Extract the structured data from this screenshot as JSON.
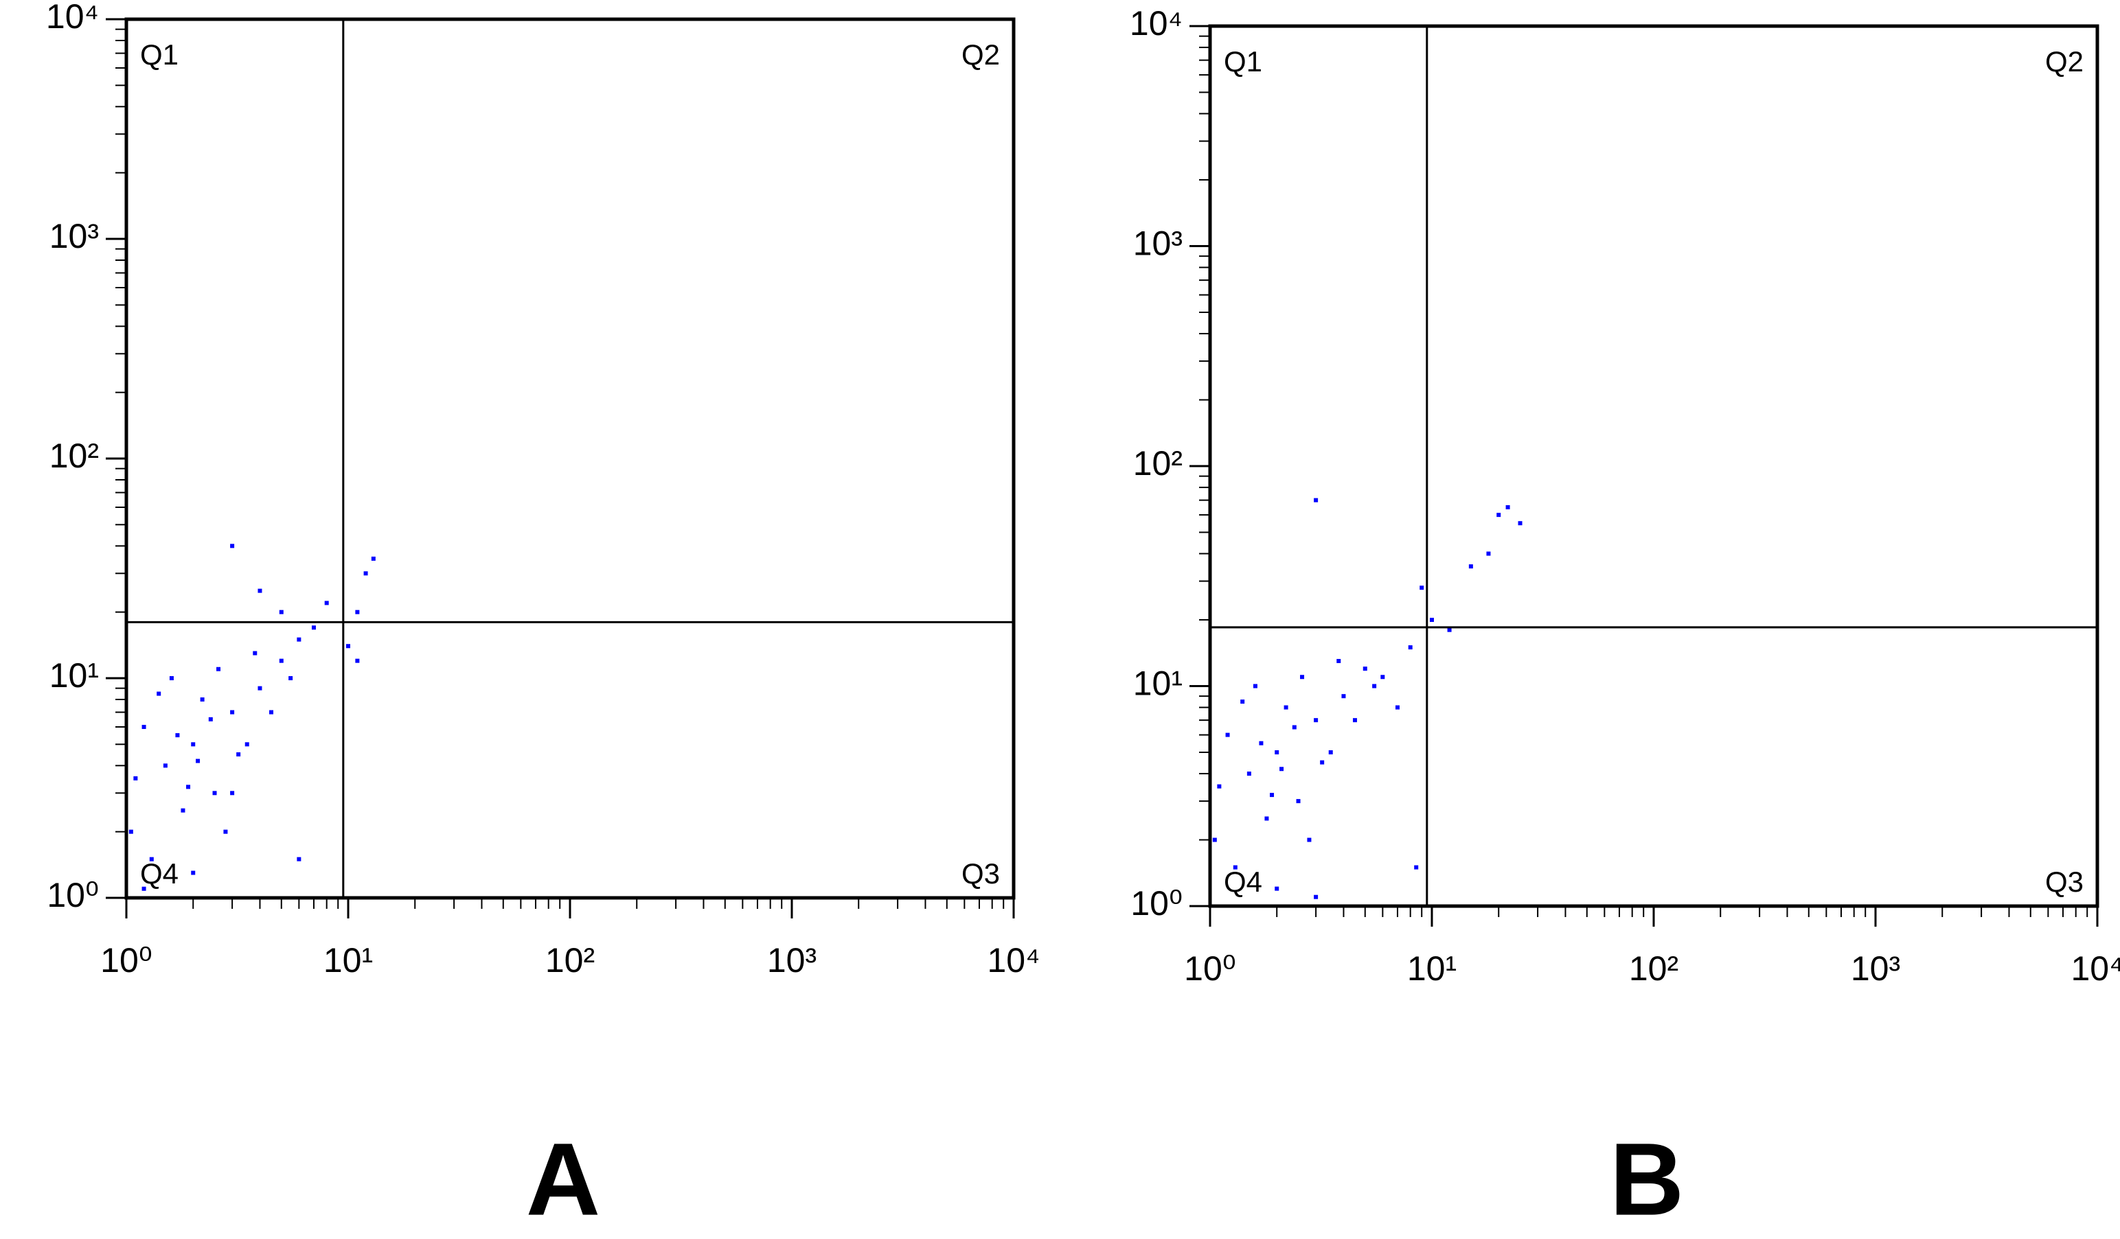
{
  "chart_data": [
    {
      "type": "scatter",
      "label": "A",
      "log_x": true,
      "log_y": true,
      "color": "#0000ff",
      "xlim": [
        1,
        10000
      ],
      "ylim": [
        1,
        10000
      ],
      "xticks": [
        {
          "value": 1,
          "label": "10⁰"
        },
        {
          "value": 10,
          "label": "10¹"
        },
        {
          "value": 100,
          "label": "10²"
        },
        {
          "value": 1000,
          "label": "10³"
        },
        {
          "value": 10000,
          "label": "10⁴"
        }
      ],
      "yticks": [
        {
          "value": 1,
          "label": "10⁰"
        },
        {
          "value": 10,
          "label": "10¹"
        },
        {
          "value": 100,
          "label": "10²"
        },
        {
          "value": 1000,
          "label": "10³"
        },
        {
          "value": 10000,
          "label": "10⁴"
        }
      ],
      "gate": {
        "x": 9.5,
        "y": 18
      },
      "quadrant_labels": [
        "Q1",
        "Q2",
        "Q3",
        "Q4"
      ],
      "x": [
        1.5,
        2,
        2.5,
        1.2,
        3,
        1.8,
        2.2,
        1.1,
        3.5,
        4,
        5,
        6,
        1.3,
        2.8,
        1.6,
        3.2,
        2.4,
        1.9,
        4.5,
        1.4,
        2.6,
        3.8,
        5.5,
        7,
        8,
        4,
        3,
        5,
        11,
        12,
        13,
        10,
        11,
        1.05,
        1.2,
        2,
        6,
        3,
        2.1,
        1.7
      ],
      "y": [
        4,
        5,
        3,
        6,
        7,
        2.5,
        8,
        3.5,
        5,
        9,
        12,
        15,
        1.5,
        2,
        10,
        4.5,
        6.5,
        3.2,
        7,
        8.5,
        11,
        13,
        10,
        17,
        22,
        25,
        40,
        20,
        20,
        30,
        35,
        14,
        12,
        2,
        1.1,
        1.3,
        1.5,
        3,
        4.2,
        5.5
      ]
    },
    {
      "type": "scatter",
      "label": "B",
      "log_x": true,
      "log_y": true,
      "color": "#0000ff",
      "xlim": [
        1,
        10000
      ],
      "ylim": [
        1,
        10000
      ],
      "xticks": [
        {
          "value": 1,
          "label": "10⁰"
        },
        {
          "value": 10,
          "label": "10¹"
        },
        {
          "value": 100,
          "label": "10²"
        },
        {
          "value": 1000,
          "label": "10³"
        },
        {
          "value": 10000,
          "label": "10⁴"
        }
      ],
      "yticks": [
        {
          "value": 1,
          "label": "10⁰"
        },
        {
          "value": 10,
          "label": "10¹"
        },
        {
          "value": 100,
          "label": "10²"
        },
        {
          "value": 1000,
          "label": "10³"
        },
        {
          "value": 10000,
          "label": "10⁴"
        }
      ],
      "gate": {
        "x": 9.5,
        "y": 18.5
      },
      "quadrant_labels": [
        "Q1",
        "Q2",
        "Q3",
        "Q4"
      ],
      "x": [
        1.5,
        2,
        2.5,
        1.2,
        3,
        1.8,
        2.2,
        1.1,
        3.5,
        4,
        5,
        6,
        1.3,
        2.8,
        1.6,
        3.2,
        2.4,
        1.9,
        4.5,
        1.4,
        2.6,
        3.8,
        5.5,
        7,
        8,
        3,
        20,
        22,
        25,
        15,
        18,
        10,
        12,
        9,
        1.05,
        2,
        3,
        2.1,
        1.7,
        8.5
      ],
      "y": [
        4,
        5,
        3,
        6,
        7,
        2.5,
        8,
        3.5,
        5,
        9,
        12,
        11,
        1.5,
        2,
        10,
        4.5,
        6.5,
        3.2,
        7,
        8.5,
        11,
        13,
        10,
        8,
        15,
        70,
        60,
        65,
        55,
        35,
        40,
        20,
        18,
        28,
        2,
        1.2,
        1.1,
        4.2,
        5.5,
        1.5
      ]
    }
  ]
}
